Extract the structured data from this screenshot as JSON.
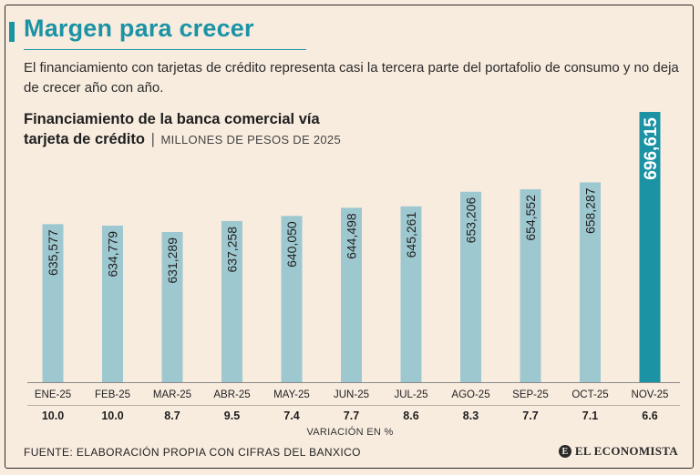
{
  "header": {
    "title": "Margen para crecer",
    "intro": "El financiamiento con tarjetas de crédito representa casi la tercera parte del portafolio de consumo y no deja de crecer año con año."
  },
  "chart_data": {
    "type": "bar",
    "title_line1": "Financiamiento de la banca comercial vía",
    "title_line2": "tarjeta de crédito",
    "title_separator": "|",
    "units": "MILLONES DE PESOS DE 2025",
    "categories": [
      "ENE-25",
      "FEB-25",
      "MAR-25",
      "ABR-25",
      "MAY-25",
      "JUN-25",
      "JUL-25",
      "AGO-25",
      "SEP-25",
      "OCT-25",
      "NOV-25"
    ],
    "values": [
      635577,
      634779,
      631289,
      637258,
      640050,
      644498,
      645261,
      653206,
      654552,
      658287,
      696615
    ],
    "value_labels": [
      "635,577",
      "634,779",
      "631,289",
      "637,258",
      "640,050",
      "644,498",
      "645,261",
      "653,206",
      "654,552",
      "658,287",
      "696,615"
    ],
    "variation": [
      "10.0",
      "10.0",
      "8.7",
      "9.5",
      "7.4",
      "7.7",
      "8.6",
      "8.3",
      "7.7",
      "7.1",
      "6.6"
    ],
    "variation_label": "VARIACIÓN EN %",
    "highlight_index": 10,
    "colors": {
      "bar": "#9ec8d0",
      "bar_highlight": "#1b93a5",
      "label_highlight": "#ffffff",
      "label": "#1e1e1e"
    }
  },
  "footer": {
    "source": "FUENTE: ELABORACIÓN PROPIA CON CIFRAS DEL BANXICO",
    "logo_mark": "E",
    "logo_text": "EL ECONOMISTA"
  }
}
